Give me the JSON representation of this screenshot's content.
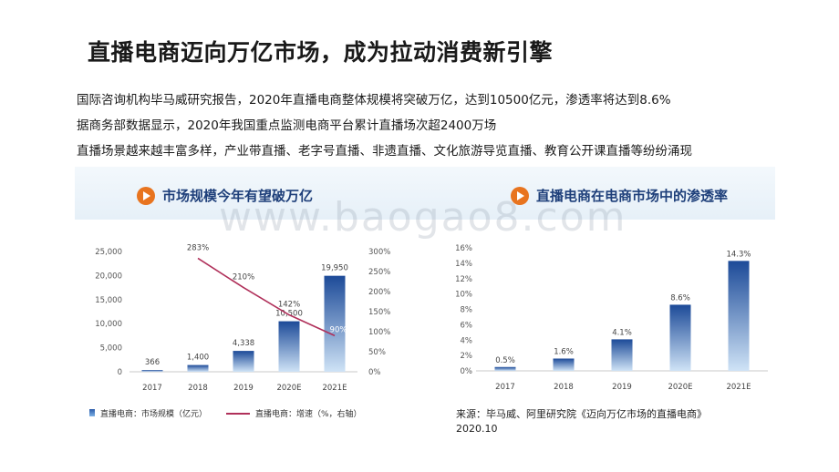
{
  "slide": {
    "title": "直播电商迈向万亿市场，成为拉动消费新引擎",
    "bullets": [
      "国际咨询机构毕马威研究报告，2020年直播电商整体规模将突破万亿，达到10500亿元，渗透率将达到8.6%",
      "据商务部数据显示，2020年我国重点监测电商平台累计直播场次超2400万场",
      "直播场景越来越丰富多样，产业带直播、老字号直播、非遗直播、文化旅游导览直播、教育公开课直播等纷纷涌现"
    ],
    "watermark": "www.baogao8.com",
    "source_line1": "来源：毕马威、阿里研究院《迈向万亿市场的直播电商》",
    "source_line2": "2020.10"
  },
  "colors": {
    "accent": "#e8741f",
    "title_blue": "#1e3f7a",
    "bar_top": "#1c4a98",
    "bar_bottom": "#cfe3f6",
    "line": "#b0305a"
  },
  "chart_data": [
    {
      "type": "bar",
      "title": "市场规模今年有望破万亿",
      "categories": [
        "2017",
        "2018",
        "2019",
        "2020E",
        "2021E"
      ],
      "series": [
        {
          "name": "直播电商：市场规模（亿元）",
          "values": [
            366,
            1400,
            4338,
            10500,
            19950
          ],
          "labels": [
            "366",
            "1,400",
            "4,338",
            "10,500",
            "19,950"
          ],
          "axis": "left"
        },
        {
          "name": "直播电商：增速（%，右轴）",
          "type": "line",
          "values": [
            null,
            283,
            210,
            142,
            90
          ],
          "labels": [
            "",
            "283%",
            "210%",
            "142%",
            "90%"
          ],
          "axis": "right"
        }
      ],
      "ylim": [
        0,
        25000
      ],
      "yticks": [
        "0",
        "5,000",
        "10,000",
        "15,000",
        "20,000",
        "25,000"
      ],
      "y2lim": [
        0,
        300
      ],
      "y2ticks": [
        "0%",
        "50%",
        "100%",
        "150%",
        "200%",
        "250%",
        "300%"
      ],
      "legend": "bottom"
    },
    {
      "type": "bar",
      "title": "直播电商在电商市场中的渗透率",
      "categories": [
        "2017",
        "2018",
        "2019",
        "2020E",
        "2021E"
      ],
      "values": [
        0.5,
        1.6,
        4.1,
        8.6,
        14.3
      ],
      "labels": [
        "0.5%",
        "1.6%",
        "4.1%",
        "8.6%",
        "14.3%"
      ],
      "ylim": [
        0,
        16
      ],
      "yticks": [
        "0%",
        "2%",
        "4%",
        "6%",
        "8%",
        "10%",
        "12%",
        "14%",
        "16%"
      ]
    }
  ]
}
